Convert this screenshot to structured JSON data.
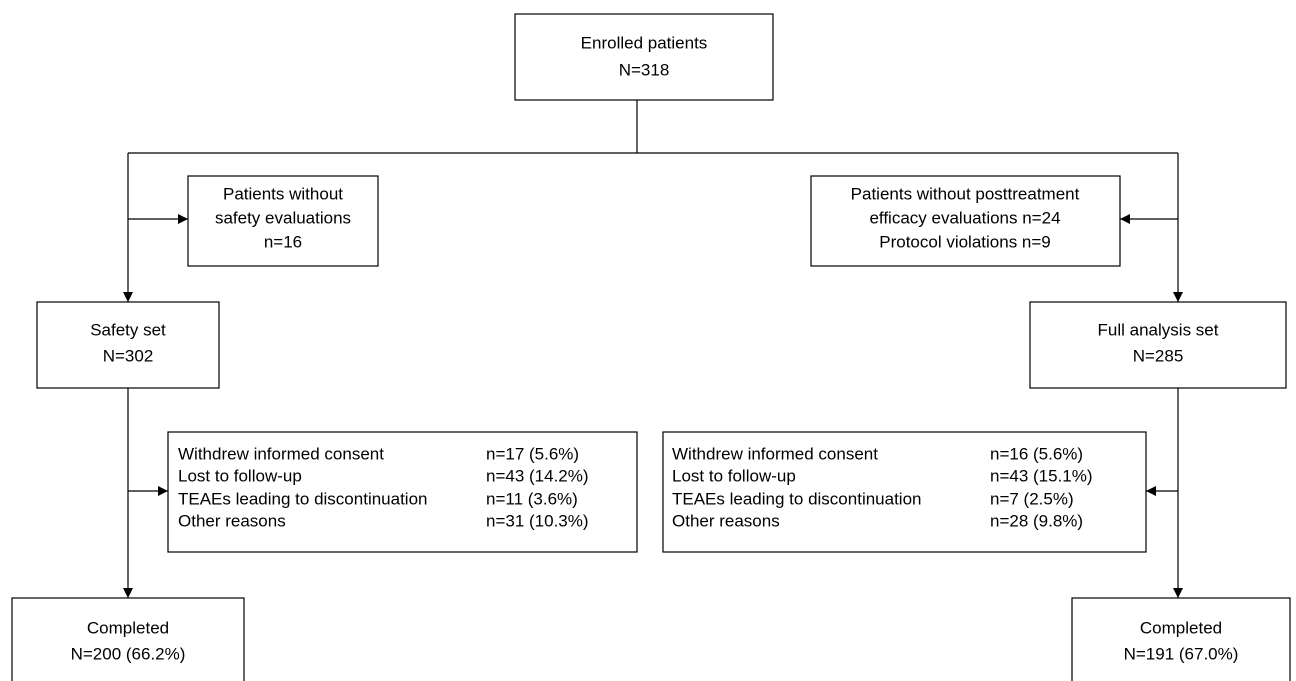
{
  "nodes": [
    {
      "lines": [
        "Enrolled patients",
        "N=318"
      ]
    },
    {
      "lines": [
        "Patients without",
        "safety evaluations",
        "n=16"
      ]
    },
    {
      "lines": [
        "Patients without posttreatment",
        "efficacy evaluations n=24",
        "Protocol violations n=9"
      ]
    },
    {
      "lines": [
        "Safety set",
        "N=302"
      ]
    },
    {
      "lines": [
        "Full analysis set",
        "N=285"
      ]
    },
    {
      "lines": [
        "Completed",
        "N=200 (66.2%)"
      ]
    },
    {
      "lines": [
        "Completed",
        "N=191 (67.0%)"
      ]
    }
  ],
  "discontinued_safety": [
    [
      "Withdrew informed consent",
      "n=17 (5.6%)"
    ],
    [
      "Lost to follow-up",
      "n=43 (14.2%)"
    ],
    [
      "TEAEs leading to discontinuation",
      "n=11 (3.6%)"
    ],
    [
      "Other reasons",
      "n=31 (10.3%)"
    ]
  ],
  "discontinued_fas": [
    [
      "Withdrew informed consent",
      "n=16 (5.6%)"
    ],
    [
      "Lost to follow-up",
      "n=43 (15.1%)"
    ],
    [
      "TEAEs leading to discontinuation",
      "n=7 (2.5%)"
    ],
    [
      "Other reasons",
      "n=28 (9.8%)"
    ]
  ]
}
